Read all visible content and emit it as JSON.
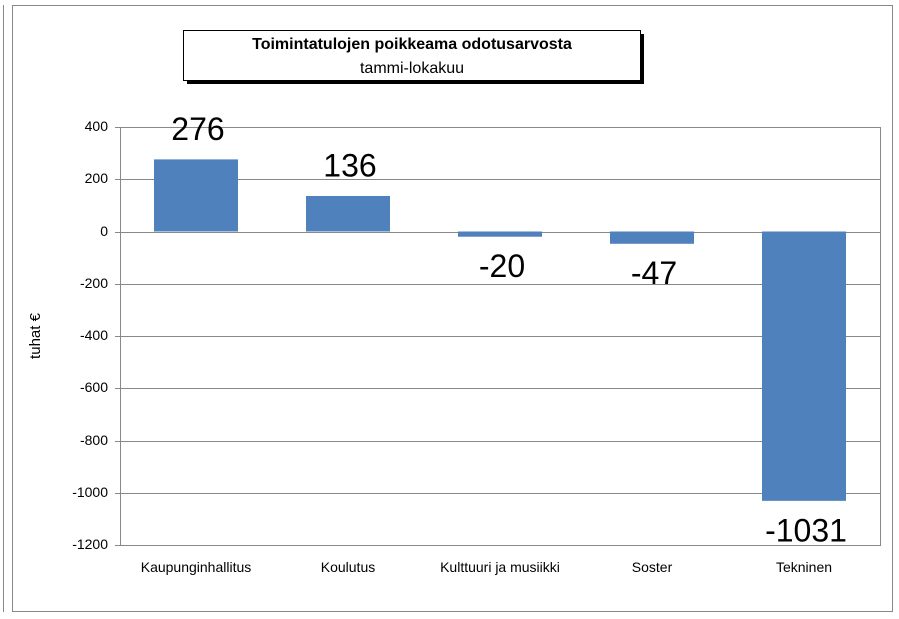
{
  "chart_data": {
    "type": "bar",
    "title": "Toimintatulojen poikkeama odotusarvosta",
    "subtitle": "tammi-lokakuu",
    "y_label": "tuhat €",
    "categories": [
      "Kaupunginhallitus",
      "Koulutus",
      "Kulttuuri ja musiikki",
      "Soster",
      "Tekninen"
    ],
    "values": [
      276,
      136,
      -20,
      -47,
      -1031
    ],
    "color": "#4f81bd",
    "ylim": [
      -1200,
      400
    ],
    "yticks": [
      -1200,
      -1000,
      -800,
      -600,
      -400,
      -200,
      0,
      200,
      400
    ],
    "grid": true
  }
}
